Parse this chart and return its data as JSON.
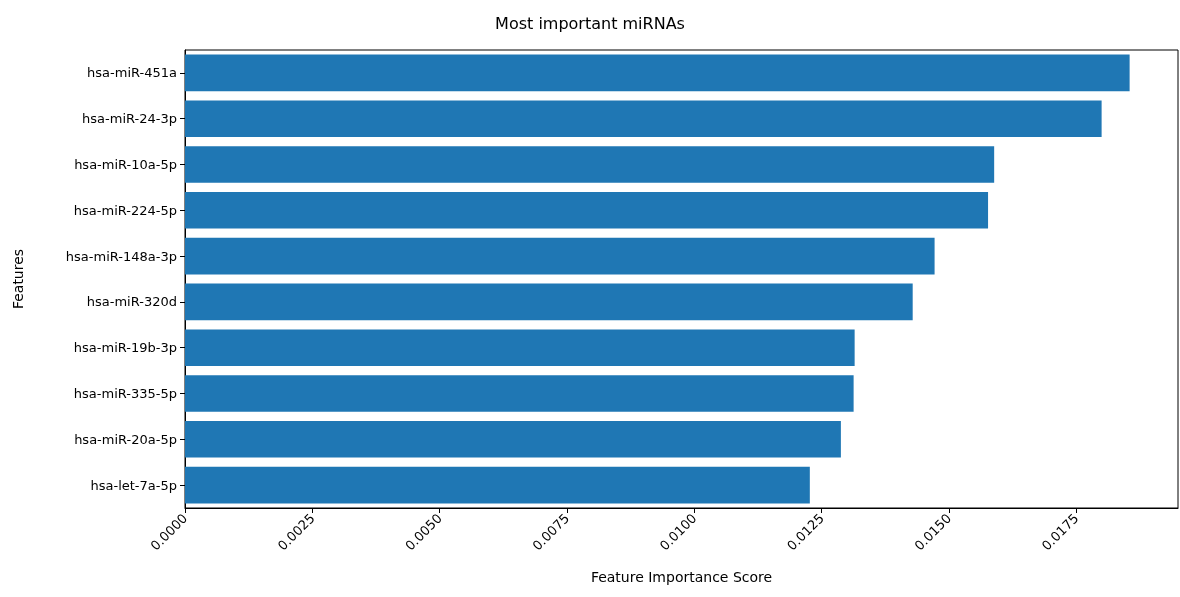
{
  "chart_data": {
    "type": "bar",
    "orientation": "horizontal",
    "title": "Most important miRNAs",
    "xlabel": "Feature Importance Score",
    "ylabel": "Features",
    "categories": [
      "hsa-miR-451a",
      "hsa-miR-24-3p",
      "hsa-miR-10a-5p",
      "hsa-miR-224-5p",
      "hsa-miR-148a-3p",
      "hsa-miR-320d",
      "hsa-miR-19b-3p",
      "hsa-miR-335-5p",
      "hsa-miR-20a-5p",
      "hsa-let-7a-5p"
    ],
    "values": [
      0.01855,
      0.018,
      0.01589,
      0.01577,
      0.01472,
      0.01429,
      0.01315,
      0.01313,
      0.01288,
      0.01227
    ],
    "color": "#1f77b4",
    "xlim": [
      0,
      0.0195
    ],
    "xticks": [
      {
        "value": 0,
        "label": "0.0000"
      },
      {
        "value": 0.0025,
        "label": "0.0025"
      },
      {
        "value": 0.005,
        "label": "0.0050"
      },
      {
        "value": 0.0075,
        "label": "0.0075"
      },
      {
        "value": 0.01,
        "label": "0.0100"
      },
      {
        "value": 0.0125,
        "label": "0.0125"
      },
      {
        "value": 0.015,
        "label": "0.0150"
      },
      {
        "value": 0.0175,
        "label": "0.0175"
      }
    ],
    "grid": false
  }
}
